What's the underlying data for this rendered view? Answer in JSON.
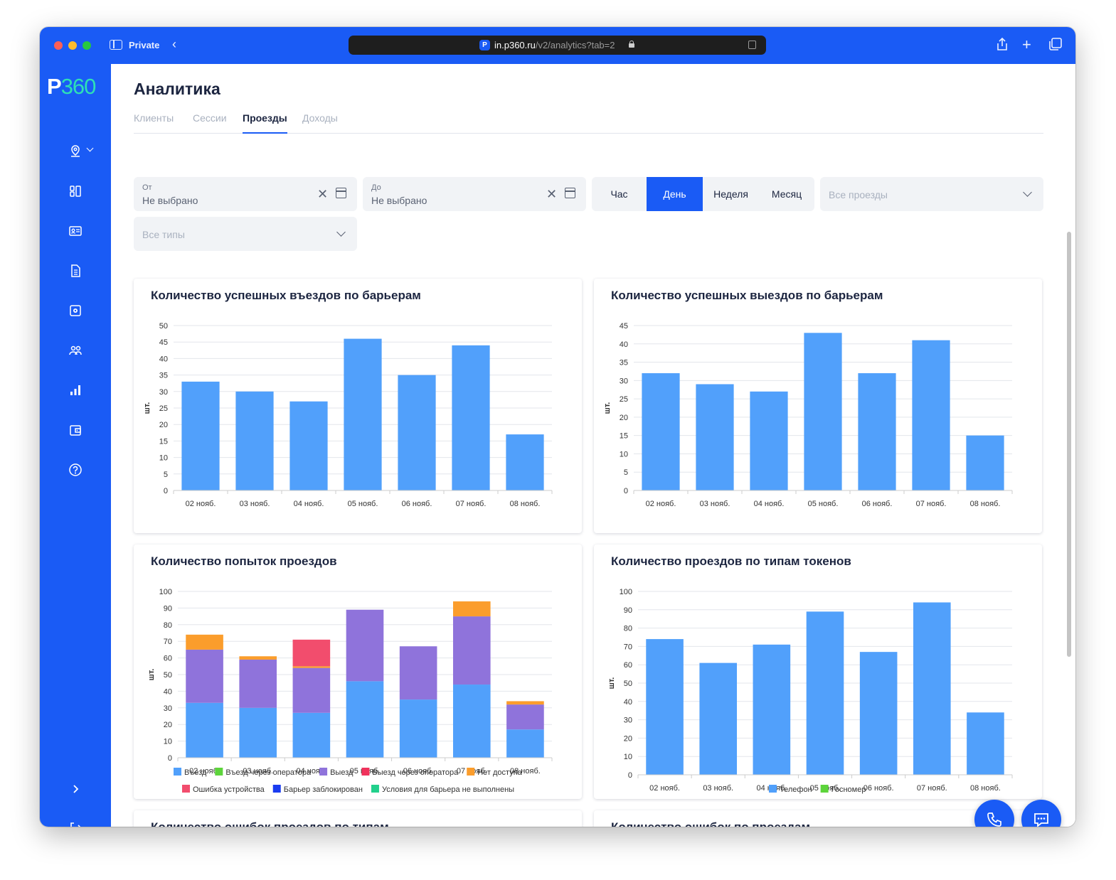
{
  "browser": {
    "mode_label": "Private",
    "url_host": "in.p360.ru",
    "url_path": "/v2/analytics?tab=2",
    "favicon_letter": "P"
  },
  "sidebar": {
    "logo_letter": "P",
    "logo_digits": "360",
    "items": [
      "location-icon",
      "dashboard-icon",
      "id-card-icon",
      "document-icon",
      "settings-icon",
      "users-icon",
      "analytics-icon",
      "wallet-icon",
      "help-icon",
      "expand-icon",
      "logout-icon"
    ]
  },
  "page": {
    "title": "Аналитика",
    "tabs": [
      {
        "label": "Клиенты",
        "active": false
      },
      {
        "label": "Сессии",
        "active": false
      },
      {
        "label": "Проезды",
        "active": true
      },
      {
        "label": "Доходы",
        "active": false
      }
    ]
  },
  "filters": {
    "from_label": "От",
    "from_value": "Не выбрано",
    "to_label": "До",
    "to_value": "Не выбрано",
    "period": [
      "Час",
      "День",
      "Неделя",
      "Месяц"
    ],
    "period_active": "День",
    "passes_placeholder": "Все проезды",
    "types_placeholder": "Все типы"
  },
  "colors": {
    "accent": "#1a5bf5",
    "bar": "#51a0fb"
  },
  "chart_data": [
    {
      "title": "Количество успешных въездов по барьерам",
      "type": "bar",
      "ylabel": "шт.",
      "categories": [
        "02 нояб.",
        "03 нояб.",
        "04 нояб.",
        "05 нояб.",
        "06 нояб.",
        "07 нояб.",
        "08 нояб."
      ],
      "values": [
        33,
        30,
        27,
        46,
        35,
        44,
        17
      ],
      "ylim": [
        0,
        50
      ],
      "yticks": [
        0,
        5,
        10,
        15,
        20,
        25,
        30,
        35,
        40,
        45,
        50
      ]
    },
    {
      "title": "Количество успешных выездов по барьерам",
      "type": "bar",
      "ylabel": "шт.",
      "categories": [
        "02 нояб.",
        "03 нояб.",
        "04 нояб.",
        "05 нояб.",
        "06 нояб.",
        "07 нояб.",
        "08 нояб."
      ],
      "values": [
        32,
        29,
        27,
        43,
        32,
        41,
        15
      ],
      "ylim": [
        0,
        45
      ],
      "yticks": [
        0,
        5,
        10,
        15,
        20,
        25,
        30,
        35,
        40,
        45
      ]
    },
    {
      "title": "Количество попыток проездов",
      "type": "bar",
      "stacked": true,
      "ylabel": "шт.",
      "categories": [
        "02 нояб.",
        "03 нояб.",
        "04 нояб.",
        "05 нояб.",
        "06 нояб.",
        "07 нояб.",
        "08 нояб."
      ],
      "ylim": [
        0,
        100
      ],
      "yticks": [
        0,
        10,
        20,
        30,
        40,
        50,
        60,
        70,
        80,
        90,
        100
      ],
      "series": [
        {
          "name": "Въезд",
          "color": "#51a0fb",
          "values": [
            33,
            30,
            27,
            46,
            35,
            44,
            17
          ]
        },
        {
          "name": "Въезд через оператора",
          "color": "#5dd43b",
          "values": [
            0,
            0,
            0,
            0,
            0,
            0,
            0
          ]
        },
        {
          "name": "Выезд",
          "color": "#8f73db",
          "values": [
            32,
            29,
            27,
            43,
            32,
            41,
            15
          ]
        },
        {
          "name": "Выезд через оператора",
          "color": "#f0325c",
          "values": [
            0,
            0,
            0,
            0,
            0,
            0,
            0
          ]
        },
        {
          "name": "Нет доступа",
          "color": "#fb9d2c",
          "values": [
            9,
            2,
            1,
            0,
            0,
            9,
            2
          ]
        },
        {
          "name": "Ошибка устройства",
          "color": "#f24d6d",
          "values": [
            0,
            0,
            16,
            0,
            0,
            0,
            0
          ]
        },
        {
          "name": "Барьер заблокирован",
          "color": "#1a3cf0",
          "values": [
            0,
            0,
            0,
            0,
            0,
            0,
            0
          ]
        },
        {
          "name": "Условия для барьера не выполнены",
          "color": "#22d08c",
          "values": [
            0,
            0,
            0,
            0,
            0,
            0,
            0
          ]
        }
      ]
    },
    {
      "title": "Количество проездов по типам токенов",
      "type": "bar",
      "stacked": true,
      "ylabel": "шт.",
      "categories": [
        "02 нояб.",
        "03 нояб.",
        "04 нояб.",
        "05 нояб.",
        "06 нояб.",
        "07 нояб.",
        "08 нояб."
      ],
      "ylim": [
        0,
        100
      ],
      "yticks": [
        0,
        10,
        20,
        30,
        40,
        50,
        60,
        70,
        80,
        90,
        100
      ],
      "series": [
        {
          "name": "Телефон",
          "color": "#51a0fb",
          "values": [
            74,
            61,
            71,
            89,
            67,
            94,
            34
          ]
        },
        {
          "name": "Госномер",
          "color": "#5dd43b",
          "values": [
            0,
            0,
            0,
            0,
            0,
            0,
            0
          ]
        }
      ]
    }
  ],
  "lower_cards": [
    {
      "title": "Количество ошибок проездов по типам"
    },
    {
      "title": "Количество ошибок по проездам"
    }
  ]
}
